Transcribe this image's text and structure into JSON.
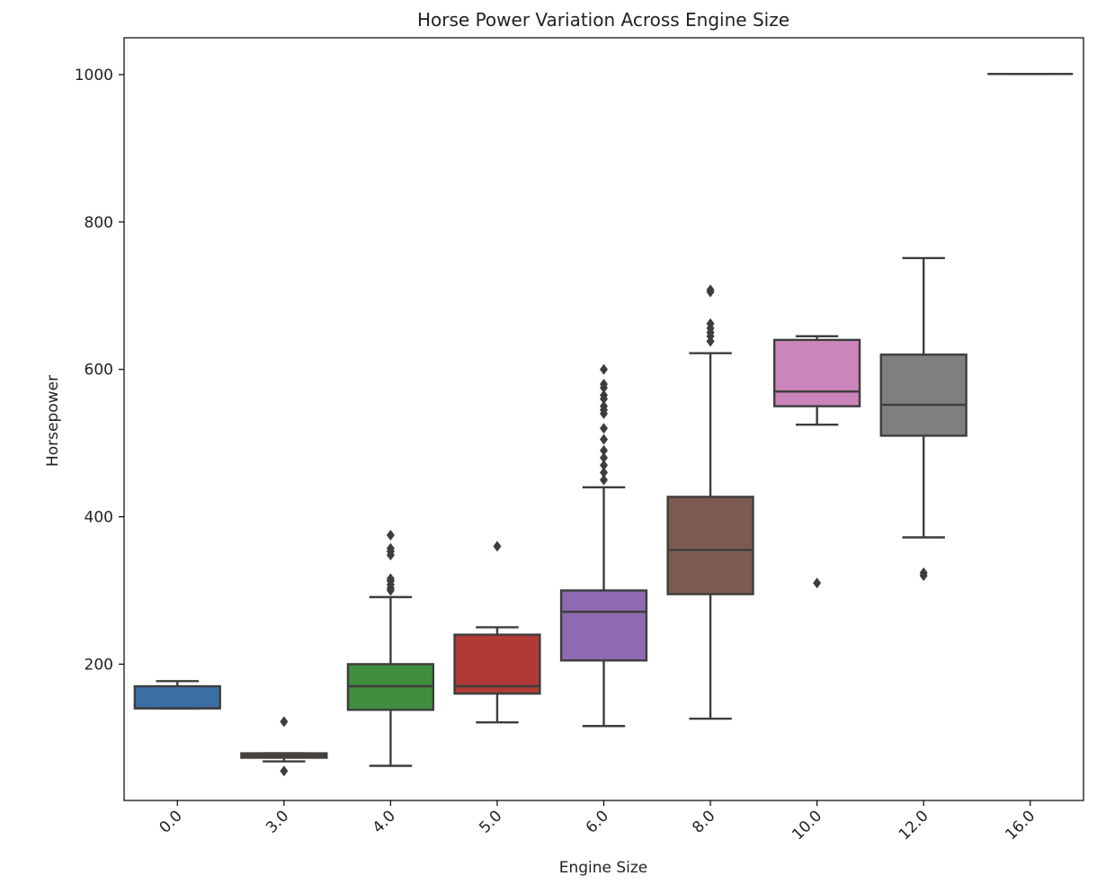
{
  "chart_data": {
    "type": "box",
    "title": "Horse Power Variation Across Engine Size",
    "xlabel": "Engine Size",
    "ylabel": "Horsepower",
    "ylim": [
      15,
      1050
    ],
    "yticks": [
      200,
      400,
      600,
      800,
      1000
    ],
    "grid": false,
    "categories": [
      "0.0",
      "3.0",
      "4.0",
      "5.0",
      "6.0",
      "8.0",
      "10.0",
      "12.0",
      "16.0"
    ],
    "colors": [
      "#3a6ea5",
      "#d07a30",
      "#3f8f3f",
      "#b03a35",
      "#8e6bb0",
      "#7d5a50",
      "#cc85bb",
      "#7f7f7f",
      "#8c8c8c"
    ],
    "boxes": [
      {
        "category": "0.0",
        "whisker_low": 140,
        "q1": 140,
        "median": 140,
        "q3": 170,
        "whisker_high": 177,
        "outliers": []
      },
      {
        "category": "3.0",
        "whisker_low": 68,
        "q1": 73,
        "median": 76,
        "q3": 79,
        "whisker_high": 79,
        "outliers": [
          55,
          122
        ]
      },
      {
        "category": "4.0",
        "whisker_low": 62,
        "q1": 138,
        "median": 170,
        "q3": 200,
        "whisker_high": 291,
        "outliers": [
          300,
          303,
          308,
          313,
          316,
          348,
          353,
          357,
          375
        ]
      },
      {
        "category": "5.0",
        "whisker_low": 121,
        "q1": 160,
        "median": 170,
        "q3": 240,
        "whisker_high": 250,
        "outliers": [
          360
        ]
      },
      {
        "category": "6.0",
        "whisker_low": 116,
        "q1": 205,
        "median": 271,
        "q3": 300,
        "whisker_high": 440,
        "outliers": [
          450,
          460,
          470,
          480,
          490,
          505,
          520,
          540,
          545,
          550,
          560,
          565,
          575,
          580,
          600
        ]
      },
      {
        "category": "8.0",
        "whisker_low": 126,
        "q1": 295,
        "median": 355,
        "q3": 427,
        "whisker_high": 622,
        "outliers": [
          638,
          645,
          650,
          656,
          662,
          705,
          708
        ]
      },
      {
        "category": "10.0",
        "whisker_low": 525,
        "q1": 550,
        "median": 570,
        "q3": 640,
        "whisker_high": 645,
        "outliers": [
          310
        ]
      },
      {
        "category": "12.0",
        "whisker_low": 372,
        "q1": 510,
        "median": 552,
        "q3": 620,
        "whisker_high": 751,
        "outliers": [
          320,
          324
        ]
      },
      {
        "category": "16.0",
        "whisker_low": 1001,
        "q1": 1001,
        "median": 1001,
        "q3": 1001,
        "whisker_high": 1001,
        "outliers": []
      }
    ]
  }
}
